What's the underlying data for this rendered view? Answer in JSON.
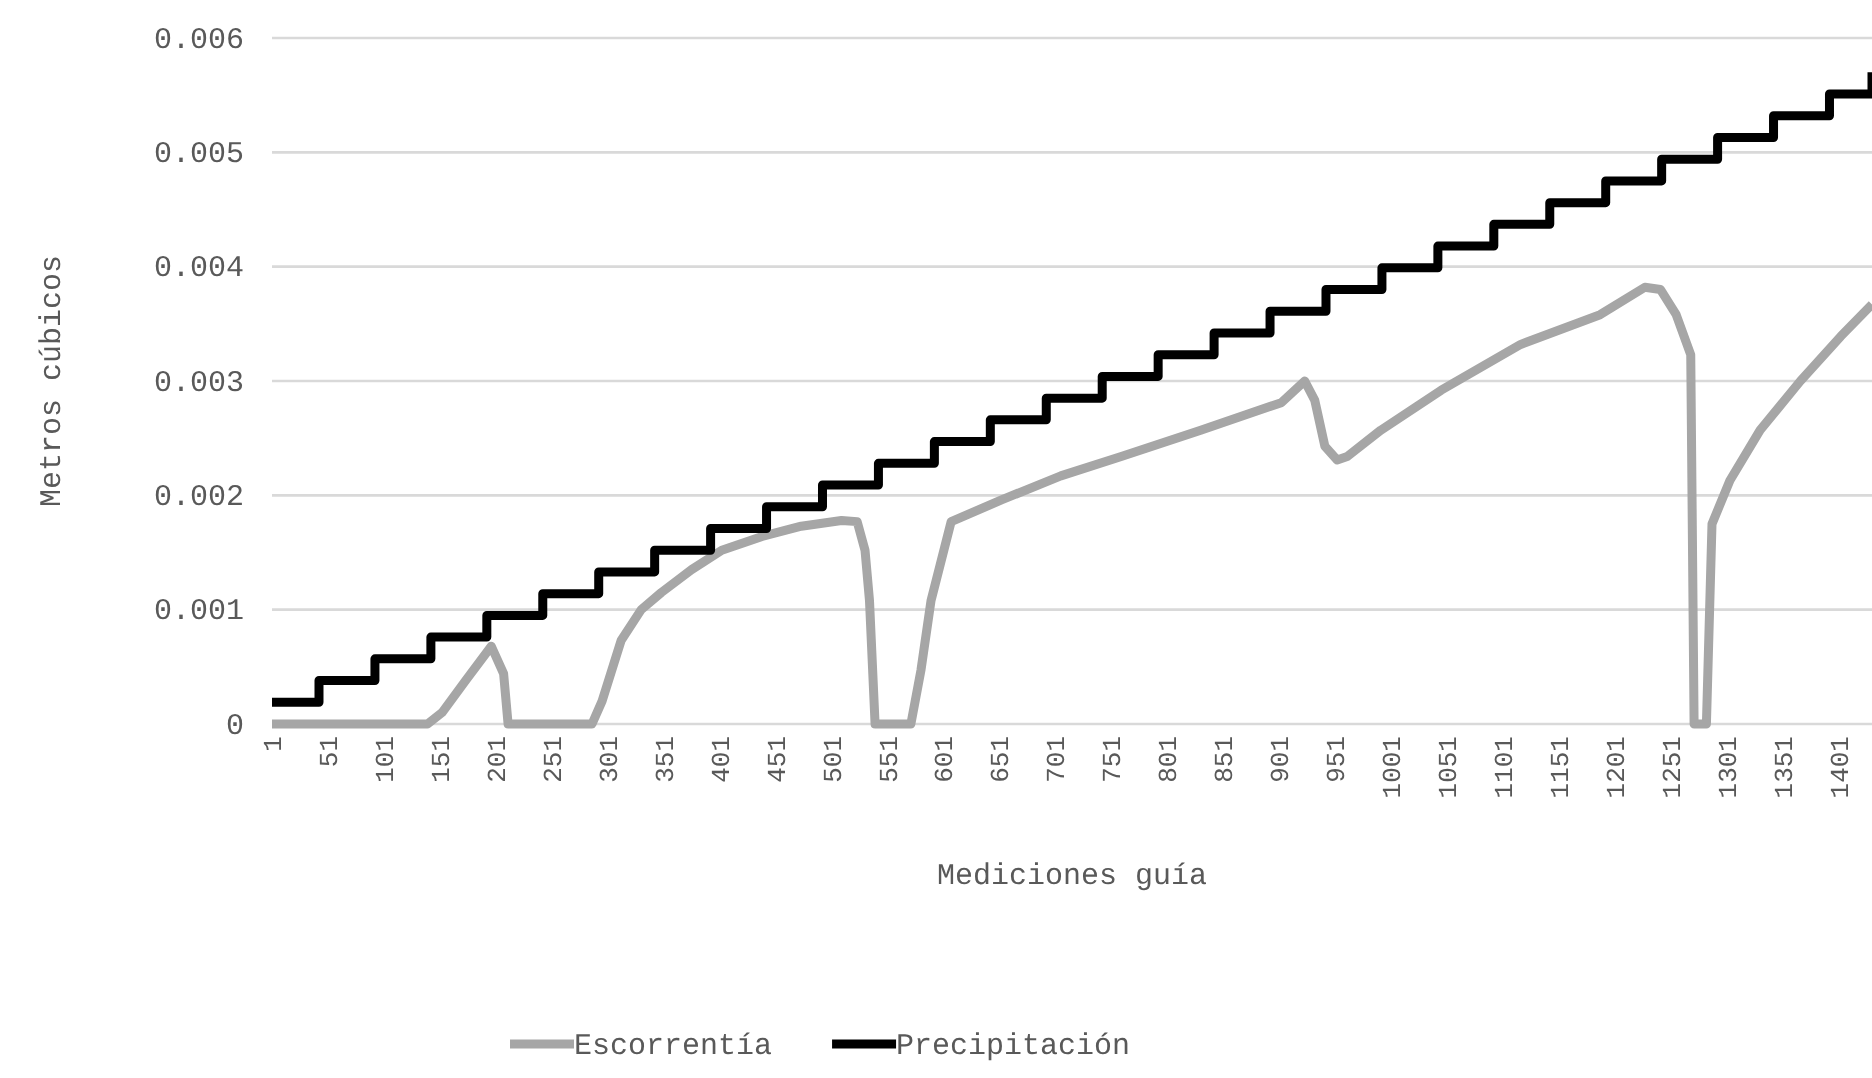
{
  "chart_data": {
    "type": "line",
    "xlabel": "Mediciones guía",
    "ylabel": "Metros cúbicos",
    "xlim": [
      1,
      1431
    ],
    "xticks": [
      1,
      51,
      101,
      151,
      201,
      251,
      301,
      351,
      401,
      451,
      501,
      551,
      601,
      651,
      701,
      751,
      801,
      851,
      901,
      951,
      1001,
      1051,
      1101,
      1151,
      1201,
      1251,
      1301,
      1351,
      1401
    ],
    "ylim": [
      0,
      0.006
    ],
    "yticks": [
      0,
      0.001,
      0.002,
      0.003,
      0.004,
      0.005,
      0.006
    ],
    "grid": "y",
    "legend": "bottom",
    "marker": "none",
    "line_style": "solid",
    "series": [
      {
        "name": "Escorrentía",
        "color": "#a6a6a6",
        "x": [
          1,
          140,
          153,
          174,
          197,
          208,
          212,
          287,
          296,
          313,
          331,
          349,
          376,
          403,
          439,
          474,
          510,
          524,
          531,
          535,
          540,
          572,
          581,
          590,
          608,
          653,
          706,
          760,
          831,
          903,
          924,
          933,
          942,
          953,
          962,
          992,
          1046,
          1117,
          1188,
          1228,
          1242,
          1256,
          1269,
          1272,
          1283,
          1288,
          1304,
          1331,
          1367,
          1403,
          1431
        ],
        "values": [
          0,
          0,
          0.0001,
          0.00038,
          0.00068,
          0.00044,
          0,
          0,
          0.0002,
          0.00073,
          0.001,
          0.00115,
          0.00135,
          0.00152,
          0.00164,
          0.00173,
          0.00178,
          0.00177,
          0.00152,
          0.00108,
          0,
          0,
          0.00047,
          0.00108,
          0.00177,
          0.00196,
          0.00217,
          0.00234,
          0.00257,
          0.00281,
          0.003,
          0.00283,
          0.00243,
          0.00231,
          0.00234,
          0.00257,
          0.00292,
          0.00332,
          0.00358,
          0.00382,
          0.0038,
          0.00358,
          0.00323,
          0,
          0,
          0.00175,
          0.00213,
          0.00257,
          0.003,
          0.00339,
          0.00367
        ]
      },
      {
        "name": "Precipitación",
        "color": "#000000",
        "type": "step",
        "x": [
          1,
          43,
          93,
          143,
          193,
          243,
          293,
          343,
          393,
          443,
          493,
          543,
          593,
          643,
          693,
          743,
          793,
          843,
          893,
          943,
          993,
          1043,
          1093,
          1143,
          1193,
          1243,
          1293,
          1343,
          1393,
          1431
        ],
        "values": [
          0.00019,
          0.00038,
          0.00057,
          0.00076,
          0.00095,
          0.00114,
          0.00133,
          0.00152,
          0.00171,
          0.0019,
          0.00209,
          0.00228,
          0.00247,
          0.00266,
          0.00285,
          0.00304,
          0.00323,
          0.00342,
          0.00361,
          0.0038,
          0.00399,
          0.00418,
          0.00437,
          0.00456,
          0.00475,
          0.00494,
          0.00513,
          0.00532,
          0.00551,
          0.0057
        ]
      }
    ]
  }
}
